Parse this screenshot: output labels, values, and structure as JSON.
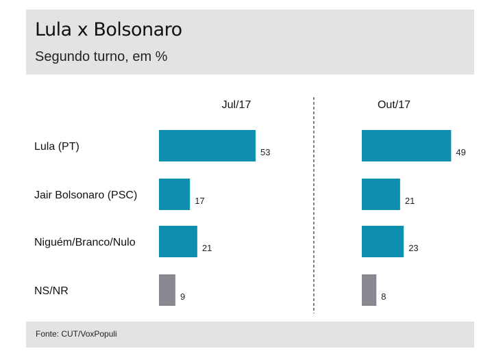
{
  "header": {
    "title": "Lula x Bolsonaro",
    "subtitle": "Segundo turno, em %"
  },
  "footer": {
    "source": "Fonte: CUT/VoxPopuli"
  },
  "colors": {
    "bar_primary": "#0f8fae",
    "bar_undecided": "#8a8991",
    "divider": "#555555",
    "panel_background": "#e3e3e3"
  },
  "chart_data": {
    "type": "bar",
    "orientation": "horizontal",
    "categories": [
      "Lula (PT)",
      "Jair Bolsonaro (PSC)",
      "Niguém/Branco/Nulo",
      "NS/NR"
    ],
    "series": [
      {
        "name": "Jul/17",
        "values": [
          53,
          17,
          21,
          9
        ]
      },
      {
        "name": "Out/17",
        "values": [
          49,
          21,
          23,
          8
        ]
      }
    ],
    "xlim": [
      0,
      53
    ],
    "grid": false,
    "legend": "none"
  }
}
